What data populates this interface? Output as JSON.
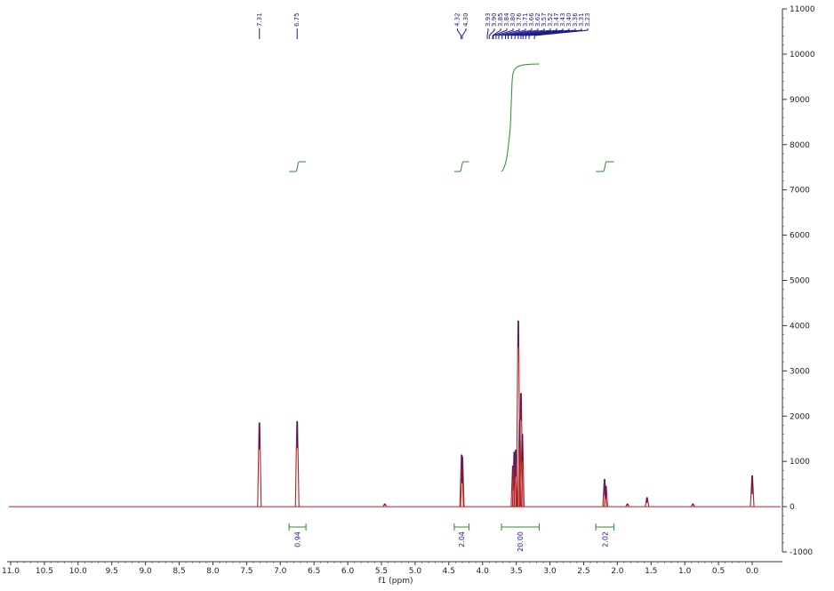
{
  "chart_data": {
    "type": "line",
    "title": "",
    "xlabel": "f1 (ppm)",
    "ylabel": "",
    "x_reversed": true,
    "xlim": [
      11.0,
      -0.9
    ],
    "ylim": [
      -1000,
      11000
    ],
    "x_ticks": [
      11.0,
      10.5,
      10.0,
      9.5,
      9.0,
      8.5,
      8.0,
      7.5,
      7.0,
      6.5,
      6.0,
      5.5,
      5.0,
      4.5,
      4.0,
      3.5,
      3.0,
      2.5,
      2.0,
      1.5,
      1.0,
      0.5,
      0.0
    ],
    "x_tick_labels": [
      "11.0",
      "10.5",
      "10.0",
      "9.5",
      "9.0",
      "8.5",
      "8.0",
      "7.5",
      "7.0",
      "6.5",
      "6.0",
      "5.5",
      "5.0",
      "4.5",
      "4.0",
      "3.5",
      "3.0",
      "2.5",
      "2.0",
      "1.5",
      "1.0",
      "0.5",
      "0.0"
    ],
    "y_ticks": [
      11000,
      10000,
      9000,
      8000,
      7000,
      6000,
      5000,
      4000,
      3000,
      2000,
      1000,
      0,
      -1000
    ],
    "y_tick_labels": [
      "11000",
      "10000",
      "9000",
      "8000",
      "7000",
      "6000",
      "5000",
      "4000",
      "3000",
      "2000",
      "1000",
      "0",
      "-1000"
    ],
    "spectrum_color": "#b22222",
    "peak_color": "#1c1c8c",
    "integral_color": "#2e8b2e",
    "peaks": [
      {
        "ppm": 7.31,
        "height": 1850
      },
      {
        "ppm": 6.75,
        "height": 1880
      },
      {
        "ppm": 5.45,
        "height": 60
      },
      {
        "ppm": 4.31,
        "height": 1140
      },
      {
        "ppm": 4.3,
        "height": 1100
      },
      {
        "ppm": 3.55,
        "height": 900
      },
      {
        "ppm": 3.53,
        "height": 1200
      },
      {
        "ppm": 3.51,
        "height": 1250
      },
      {
        "ppm": 3.47,
        "height": 4100
      },
      {
        "ppm": 3.45,
        "height": 1900
      },
      {
        "ppm": 3.43,
        "height": 2500
      },
      {
        "ppm": 3.41,
        "height": 1600
      },
      {
        "ppm": 2.19,
        "height": 600
      },
      {
        "ppm": 2.17,
        "height": 450
      },
      {
        "ppm": 1.85,
        "height": 60
      },
      {
        "ppm": 1.56,
        "height": 200
      },
      {
        "ppm": 0.88,
        "height": 60
      },
      {
        "ppm": 0.0,
        "height": 680
      }
    ],
    "peak_labels": [
      {
        "ppm": 7.31,
        "text": "7.31"
      },
      {
        "ppm": 6.75,
        "text": "6.75"
      },
      {
        "ppm": 4.32,
        "text": "4.32"
      },
      {
        "ppm": 4.3,
        "text": "4.30"
      },
      {
        "ppm": 3.93,
        "text": "3.93"
      },
      {
        "ppm": 3.9,
        "text": "3.90"
      },
      {
        "ppm": 3.85,
        "text": "3.85"
      },
      {
        "ppm": 3.84,
        "text": "3.84"
      },
      {
        "ppm": 3.8,
        "text": "3.80"
      },
      {
        "ppm": 3.76,
        "text": "3.76"
      },
      {
        "ppm": 3.71,
        "text": "3.71"
      },
      {
        "ppm": 3.66,
        "text": "3.66"
      },
      {
        "ppm": 3.62,
        "text": "3.62"
      },
      {
        "ppm": 3.57,
        "text": "3.57"
      },
      {
        "ppm": 3.52,
        "text": "3.52"
      },
      {
        "ppm": 3.47,
        "text": "3.47"
      },
      {
        "ppm": 3.43,
        "text": "3.43"
      },
      {
        "ppm": 3.4,
        "text": "3.40"
      },
      {
        "ppm": 3.36,
        "text": "3.36"
      },
      {
        "ppm": 3.31,
        "text": "3.31"
      },
      {
        "ppm": 3.23,
        "text": "3.23"
      }
    ],
    "integrals": [
      {
        "from": 6.87,
        "to": 6.62,
        "value": "0.94"
      },
      {
        "from": 4.42,
        "to": 4.2,
        "value": "2.04"
      },
      {
        "from": 3.72,
        "to": 3.16,
        "value": "20.00"
      },
      {
        "from": 2.32,
        "to": 2.05,
        "value": "2.02"
      }
    ]
  }
}
